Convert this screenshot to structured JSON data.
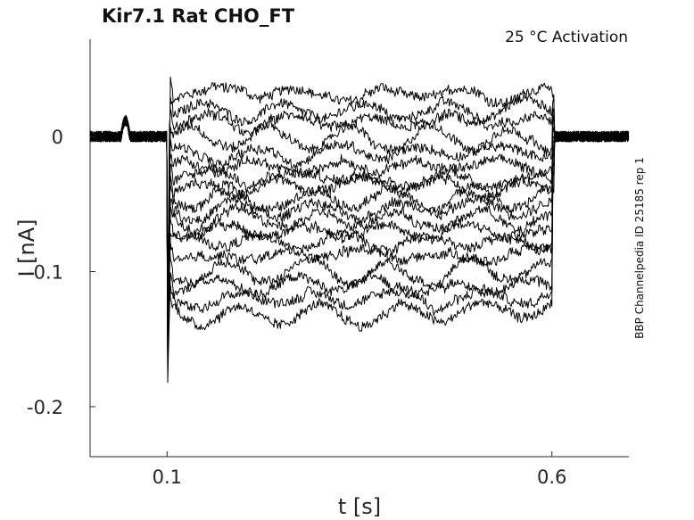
{
  "chart_data": {
    "type": "line",
    "title": "Kir7.1  Rat  CHO_FT",
    "subtitle": "25 °C  Activation",
    "side_label": "BBP Channelpedia ID 25185 rep 1",
    "xlabel": "t [s]",
    "ylabel": "I [nA]",
    "xlim": [
      0.0,
      0.7
    ],
    "ylim": [
      -0.237,
      0.072
    ],
    "x_ticks": [
      0.1,
      0.6
    ],
    "x_tick_labels": [
      "0.1",
      "0.6"
    ],
    "y_ticks": [
      0,
      -0.1,
      -0.2
    ],
    "y_tick_labels": [
      "0",
      "-0.1",
      "-0.2"
    ],
    "stimulus_window": [
      0.1,
      0.6
    ],
    "grid": false,
    "legend": "none",
    "line_color": "#000000",
    "series_step_levels": [
      0.032,
      0.02,
      0.01,
      -0.002,
      -0.012,
      -0.022,
      -0.03,
      -0.038,
      -0.046,
      -0.054,
      -0.062,
      -0.07,
      -0.078,
      -0.088,
      -0.1,
      -0.11,
      -0.12,
      -0.13
    ]
  }
}
